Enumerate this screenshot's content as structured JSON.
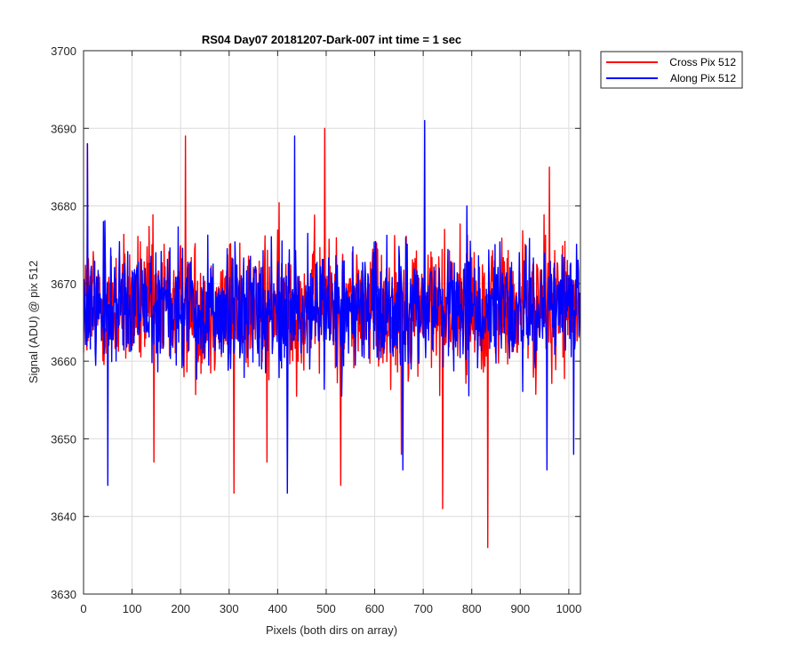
{
  "chart_data": {
    "type": "line",
    "title": "RS04 Day07 20181207-Dark-007 int time = 1 sec",
    "xlabel": "Pixels (both dirs on array)",
    "ylabel": "Signal (ADU) @ pix 512",
    "xlim": [
      0,
      1024
    ],
    "ylim": [
      3630,
      3700
    ],
    "xticks": [
      0,
      100,
      200,
      300,
      400,
      500,
      600,
      700,
      800,
      900,
      1000
    ],
    "yticks": [
      3630,
      3640,
      3650,
      3660,
      3670,
      3680,
      3690,
      3700
    ],
    "grid": true,
    "legend_position": "outside-top-right",
    "series": [
      {
        "name": "Cross Pix 512",
        "color": "#ff0000",
        "points_count": 1024,
        "mean": 3667,
        "noise_range": [
          3652,
          3682
        ],
        "notable_points": [
          {
            "x": 8,
            "y": 3688
          },
          {
            "x": 210,
            "y": 3689
          },
          {
            "x": 497,
            "y": 3690
          },
          {
            "x": 310,
            "y": 3643
          },
          {
            "x": 378,
            "y": 3647
          },
          {
            "x": 145,
            "y": 3647
          },
          {
            "x": 530,
            "y": 3644
          },
          {
            "x": 740,
            "y": 3641
          },
          {
            "x": 833,
            "y": 3636
          },
          {
            "x": 655,
            "y": 3648
          },
          {
            "x": 960,
            "y": 3685
          }
        ]
      },
      {
        "name": "Along Pix 512",
        "color": "#0000ff",
        "points_count": 1024,
        "mean": 3667,
        "noise_range": [
          3653,
          3680
        ],
        "notable_points": [
          {
            "x": 8,
            "y": 3688
          },
          {
            "x": 703,
            "y": 3691
          },
          {
            "x": 435,
            "y": 3689
          },
          {
            "x": 50,
            "y": 3644
          },
          {
            "x": 420,
            "y": 3643
          },
          {
            "x": 658,
            "y": 3646
          },
          {
            "x": 790,
            "y": 3680
          },
          {
            "x": 1010,
            "y": 3648
          },
          {
            "x": 955,
            "y": 3646
          }
        ]
      }
    ]
  }
}
